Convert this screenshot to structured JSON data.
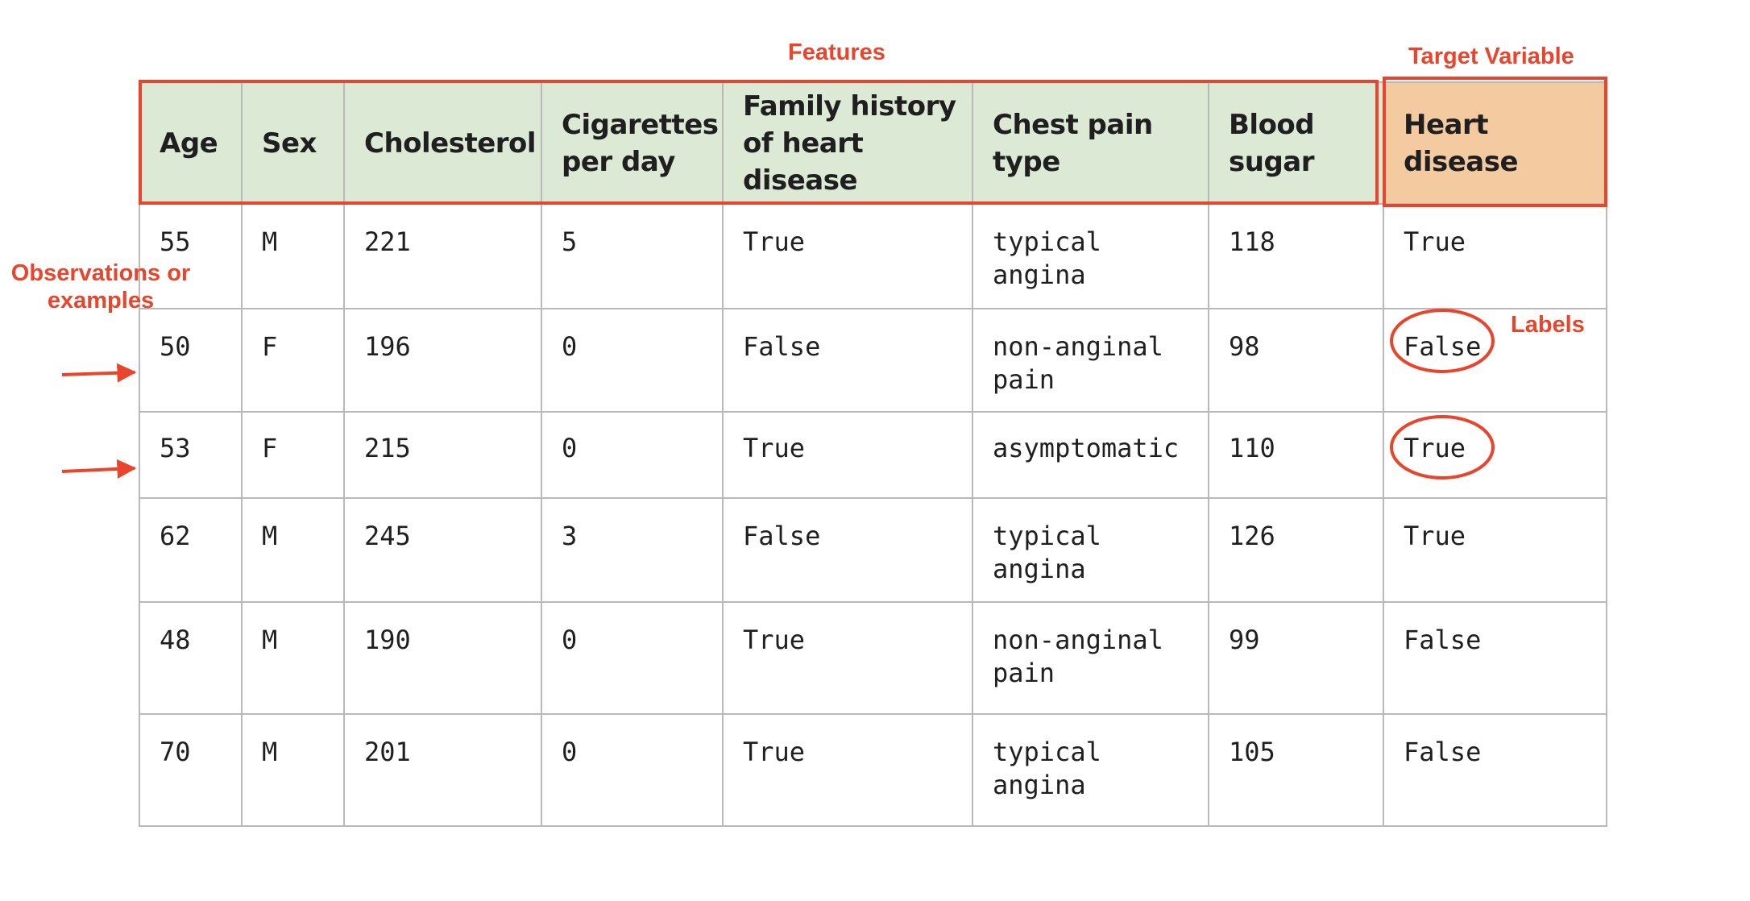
{
  "annotations": {
    "features": "Features",
    "target_variable": "Target Variable",
    "observations": "Observations or examples",
    "labels": "Labels"
  },
  "table": {
    "headers": [
      "Age",
      "Sex",
      "Cholesterol",
      "Cigarettes\nper day",
      "Family history\nof heart disease",
      "Chest pain\ntype",
      "Blood\nsugar",
      "Heart disease"
    ],
    "rows": [
      [
        "55",
        "M",
        "221",
        "5",
        "True",
        "typical\nangina",
        "118",
        "True"
      ],
      [
        "50",
        "F",
        "196",
        "0",
        "False",
        "non-anginal\npain",
        "98",
        "False"
      ],
      [
        "53",
        "F",
        "215",
        "0",
        "True",
        "asymptomatic",
        "110",
        "True"
      ],
      [
        "62",
        "M",
        "245",
        "3",
        "False",
        "typical\nangina",
        "126",
        "True"
      ],
      [
        "48",
        "M",
        "190",
        "0",
        "True",
        "non-anginal\npain",
        "99",
        "False"
      ],
      [
        "70",
        "M",
        "201",
        "0",
        "True",
        "typical\nangina",
        "105",
        "False"
      ]
    ]
  },
  "colors": {
    "feature_header_bg": "#dce9d5",
    "target_header_bg": "#f4cba0",
    "annotation": "#e8452c",
    "grid": "#b9b9b9"
  }
}
